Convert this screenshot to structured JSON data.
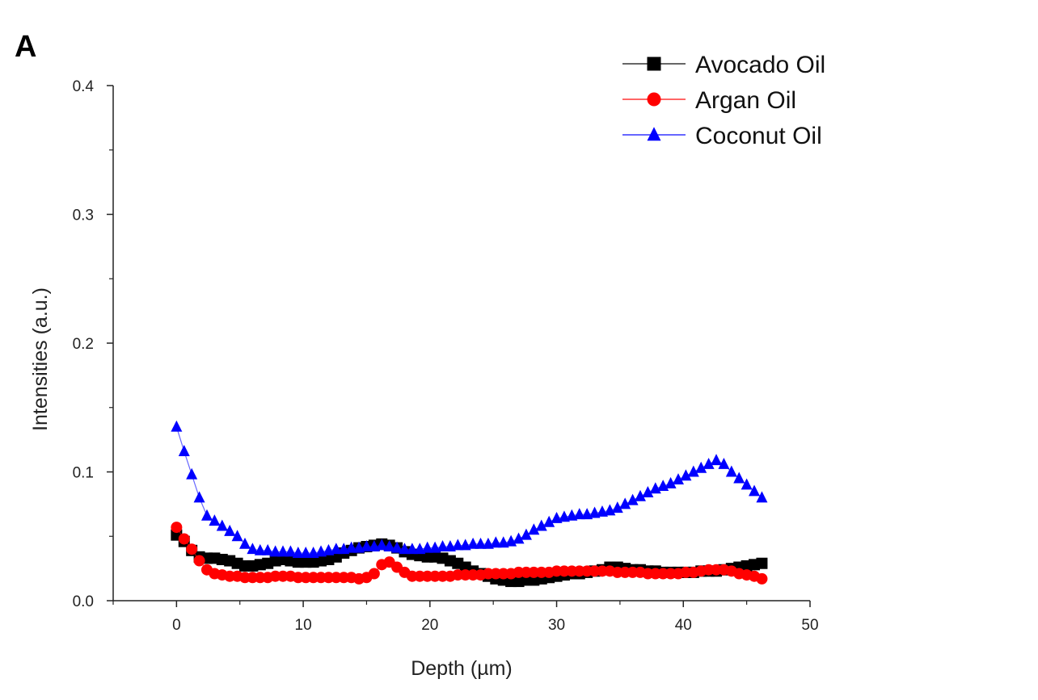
{
  "panel_label": "A",
  "chart_data": {
    "type": "line",
    "title": "",
    "xlabel": "Depth (µm)",
    "ylabel": "Intensities (a.u.)",
    "xlim": [
      -5,
      50
    ],
    "ylim": [
      0.0,
      0.4
    ],
    "x_ticks": [
      0,
      10,
      20,
      30,
      40,
      50
    ],
    "y_ticks": [
      0.0,
      0.1,
      0.2,
      0.3,
      0.4
    ],
    "x_tick_labels": [
      "0",
      "10",
      "20",
      "30",
      "40",
      "50"
    ],
    "y_tick_labels": [
      "0.0",
      "0.1",
      "0.2",
      "0.3",
      "0.4"
    ],
    "legend_position": "top-right",
    "x": [
      0,
      0.6,
      1.2,
      1.8,
      2.4,
      3,
      3.6,
      4.2,
      4.8,
      5.4,
      6,
      6.6,
      7.2,
      7.8,
      8.4,
      9,
      9.6,
      10.2,
      10.8,
      11.4,
      12,
      12.6,
      13.2,
      13.8,
      14.4,
      15,
      15.6,
      16.2,
      16.8,
      17.4,
      18,
      18.6,
      19.2,
      19.8,
      20.4,
      21,
      21.6,
      22.2,
      22.8,
      23.4,
      24,
      24.6,
      25.2,
      25.8,
      26.4,
      27,
      27.6,
      28.2,
      28.8,
      29.4,
      30,
      30.6,
      31.2,
      31.8,
      32.4,
      33,
      33.6,
      34.2,
      34.8,
      35.4,
      36,
      36.6,
      37.2,
      37.8,
      38.4,
      39,
      39.6,
      40.2,
      40.8,
      41.4,
      42,
      42.6,
      43.2,
      43.8,
      44.4,
      45,
      45.6,
      46.2
    ],
    "series": [
      {
        "name": "Avocado Oil",
        "color": "#000000",
        "marker": "square",
        "values": [
          0.051,
          0.046,
          0.039,
          0.034,
          0.033,
          0.033,
          0.032,
          0.031,
          0.029,
          0.027,
          0.027,
          0.028,
          0.029,
          0.031,
          0.032,
          0.031,
          0.03,
          0.03,
          0.03,
          0.031,
          0.032,
          0.034,
          0.037,
          0.039,
          0.041,
          0.042,
          0.043,
          0.044,
          0.043,
          0.041,
          0.038,
          0.036,
          0.035,
          0.034,
          0.034,
          0.033,
          0.031,
          0.029,
          0.026,
          0.023,
          0.021,
          0.019,
          0.017,
          0.016,
          0.015,
          0.015,
          0.016,
          0.016,
          0.017,
          0.018,
          0.019,
          0.02,
          0.021,
          0.021,
          0.022,
          0.023,
          0.024,
          0.026,
          0.026,
          0.025,
          0.024,
          0.024,
          0.023,
          0.023,
          0.022,
          0.022,
          0.022,
          0.022,
          0.022,
          0.023,
          0.023,
          0.023,
          0.024,
          0.025,
          0.026,
          0.027,
          0.028,
          0.029
        ]
      },
      {
        "name": "Argan Oil",
        "color": "#ff0000",
        "marker": "circle",
        "values": [
          0.057,
          0.048,
          0.04,
          0.031,
          0.024,
          0.021,
          0.02,
          0.019,
          0.019,
          0.018,
          0.018,
          0.018,
          0.018,
          0.019,
          0.019,
          0.019,
          0.018,
          0.018,
          0.018,
          0.018,
          0.018,
          0.018,
          0.018,
          0.018,
          0.017,
          0.018,
          0.021,
          0.028,
          0.03,
          0.026,
          0.022,
          0.019,
          0.019,
          0.019,
          0.019,
          0.019,
          0.019,
          0.02,
          0.02,
          0.02,
          0.02,
          0.021,
          0.021,
          0.021,
          0.021,
          0.022,
          0.022,
          0.022,
          0.022,
          0.022,
          0.023,
          0.023,
          0.023,
          0.023,
          0.023,
          0.023,
          0.023,
          0.023,
          0.022,
          0.022,
          0.022,
          0.022,
          0.021,
          0.021,
          0.021,
          0.021,
          0.021,
          0.022,
          0.022,
          0.023,
          0.024,
          0.024,
          0.024,
          0.023,
          0.021,
          0.02,
          0.019,
          0.017
        ]
      },
      {
        "name": "Coconut Oil",
        "color": "#0000ff",
        "marker": "triangle",
        "values": [
          0.135,
          0.116,
          0.098,
          0.08,
          0.066,
          0.062,
          0.058,
          0.054,
          0.05,
          0.044,
          0.04,
          0.039,
          0.039,
          0.038,
          0.038,
          0.038,
          0.037,
          0.037,
          0.037,
          0.038,
          0.039,
          0.04,
          0.04,
          0.041,
          0.041,
          0.042,
          0.042,
          0.043,
          0.042,
          0.041,
          0.04,
          0.04,
          0.04,
          0.041,
          0.041,
          0.042,
          0.042,
          0.043,
          0.043,
          0.044,
          0.044,
          0.044,
          0.045,
          0.045,
          0.046,
          0.048,
          0.051,
          0.055,
          0.058,
          0.061,
          0.064,
          0.065,
          0.066,
          0.067,
          0.067,
          0.068,
          0.069,
          0.07,
          0.072,
          0.075,
          0.078,
          0.081,
          0.084,
          0.087,
          0.089,
          0.091,
          0.094,
          0.097,
          0.1,
          0.103,
          0.106,
          0.109,
          0.106,
          0.1,
          0.095,
          0.09,
          0.085,
          0.08
        ]
      }
    ]
  }
}
